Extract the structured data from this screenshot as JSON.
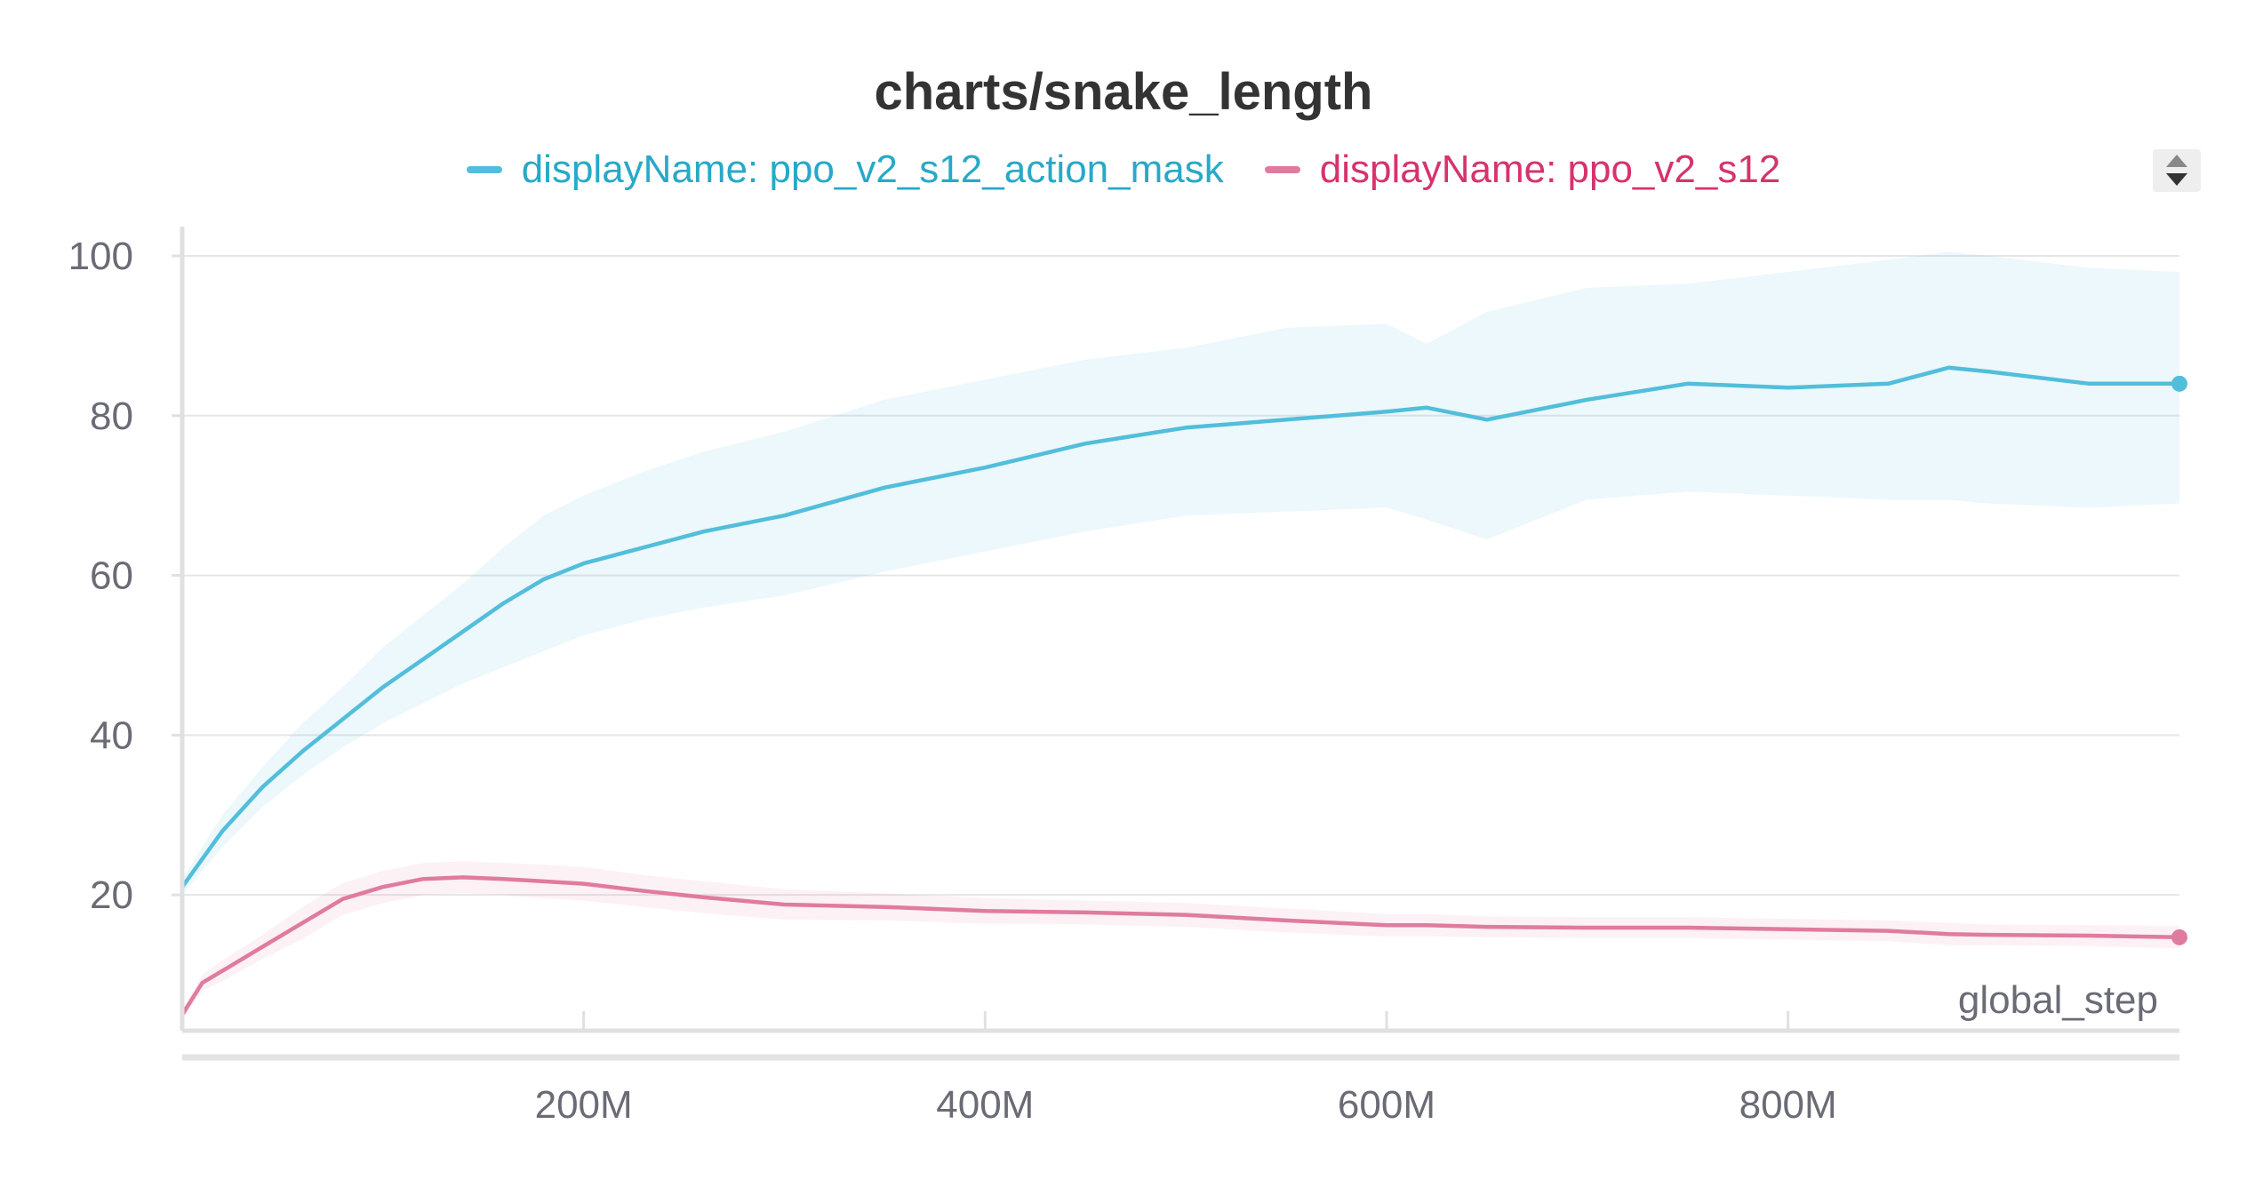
{
  "chart_data": {
    "type": "line",
    "title": "charts/snake_length",
    "xlabel": "global_step",
    "ylabel": "",
    "xlim": [
      0,
      995000000
    ],
    "ylim": [
      3,
      102
    ],
    "x_ticks": [
      200000000,
      400000000,
      600000000,
      800000000
    ],
    "x_tick_labels": [
      "200M",
      "400M",
      "600M",
      "800M"
    ],
    "y_ticks": [
      20,
      40,
      60,
      80,
      100
    ],
    "y_tick_labels": [
      "20",
      "40",
      "60",
      "80",
      "100"
    ],
    "grid": "horizontal",
    "legend_position": "top-center",
    "x": [
      0,
      10000000,
      20000000,
      40000000,
      60000000,
      80000000,
      100000000,
      120000000,
      140000000,
      160000000,
      180000000,
      200000000,
      230000000,
      260000000,
      300000000,
      350000000,
      400000000,
      450000000,
      500000000,
      550000000,
      600000000,
      620000000,
      650000000,
      700000000,
      750000000,
      800000000,
      850000000,
      880000000,
      900000000,
      950000000,
      995000000
    ],
    "series": [
      {
        "name": "displayName: ppo_v2_s12_action_mask",
        "color": "#52bedb",
        "values": [
          21,
          24.5,
          28,
          33.5,
          38,
          42,
          46,
          49.5,
          53,
          56.5,
          59.5,
          61.5,
          63.5,
          65.5,
          67.5,
          71,
          73.5,
          76.5,
          78.5,
          79.5,
          80.5,
          81,
          79.5,
          82,
          84,
          83.5,
          84,
          86,
          85.5,
          84,
          84
        ],
        "band_upper": [
          22,
          26,
          30,
          36,
          41.5,
          46,
          51,
          55,
          59,
          63.5,
          67.5,
          70,
          73,
          75.5,
          78,
          82,
          84.5,
          87,
          88.5,
          91,
          91.5,
          89,
          93,
          96,
          96.5,
          98,
          99.5,
          100.5,
          100,
          98.5,
          98
        ],
        "band_lower": [
          20,
          23,
          26,
          31,
          35,
          38.5,
          41.5,
          44,
          46.5,
          48.5,
          50.5,
          52.5,
          54.5,
          56,
          57.5,
          60.5,
          63,
          65.5,
          67.5,
          68,
          68.5,
          67,
          64.5,
          69.5,
          70.5,
          70,
          69.5,
          69.5,
          69,
          68.5,
          69
        ]
      },
      {
        "name": "displayName: ppo_v2_s12",
        "color": "#e07ba0",
        "values": [
          5,
          9,
          10.5,
          13.5,
          16.5,
          19.5,
          21,
          22,
          22.2,
          22,
          21.7,
          21.4,
          20.5,
          19.7,
          18.8,
          18.5,
          18,
          17.8,
          17.5,
          16.8,
          16.2,
          16.2,
          16,
          15.9,
          15.9,
          15.7,
          15.5,
          15.1,
          15,
          14.9,
          14.7
        ],
        "band_upper": [
          5.5,
          10,
          11.8,
          15,
          18.5,
          21.5,
          23,
          24,
          24.2,
          24,
          23.8,
          23.5,
          22.5,
          21.7,
          20.7,
          20.2,
          19.6,
          19.3,
          19,
          18.3,
          17.6,
          17.6,
          17.3,
          17.2,
          17.2,
          17,
          16.8,
          16.5,
          16.3,
          16.2,
          16.1
        ],
        "band_lower": [
          4.5,
          8,
          9.2,
          12,
          14.5,
          17.5,
          19,
          20,
          20.2,
          20,
          19.6,
          19.3,
          18.5,
          17.7,
          16.9,
          16.8,
          16.4,
          16.3,
          16,
          15.3,
          14.8,
          14.8,
          14.7,
          14.6,
          14.6,
          14.4,
          14.2,
          13.7,
          13.7,
          13.6,
          13.3
        ]
      }
    ]
  },
  "legend_scroll": {
    "icon": "up-down-arrows-icon"
  }
}
